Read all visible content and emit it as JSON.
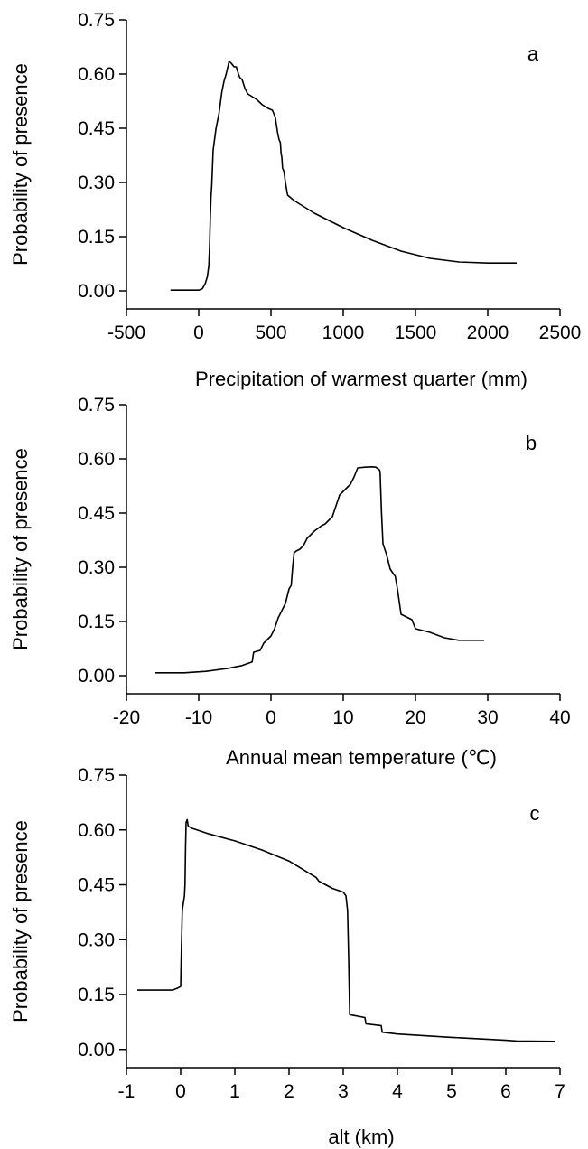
{
  "chart_data": [
    {
      "type": "line",
      "panel_label": "a",
      "xlabel": "Precipitation of warmest quarter (mm)",
      "ylabel": "Probability of presence",
      "xlim": [
        -500,
        2500
      ],
      "ylim": [
        -0.05,
        0.75
      ],
      "xticks": [
        "-500",
        "0",
        "500",
        "1000",
        "1500",
        "2000",
        "2500"
      ],
      "yticks": [
        "0.00",
        "0.15",
        "0.30",
        "0.45",
        "0.60",
        "0.75"
      ],
      "grid": false,
      "series": [
        {
          "x": [
            -195,
            0,
            25,
            45,
            60,
            70,
            75,
            80,
            85,
            90,
            100,
            110,
            120,
            140,
            160,
            175,
            190,
            210,
            225,
            235,
            245,
            260,
            275,
            285,
            300,
            320,
            340,
            360,
            380,
            400,
            440,
            480,
            510,
            530,
            545,
            555,
            560,
            565,
            570,
            575,
            580,
            590,
            600,
            615,
            630,
            660,
            700,
            800,
            1000,
            1200,
            1400,
            1600,
            1800,
            2000,
            2200
          ],
          "y": [
            0.002,
            0.002,
            0.006,
            0.02,
            0.04,
            0.07,
            0.12,
            0.2,
            0.26,
            0.29,
            0.39,
            0.42,
            0.45,
            0.49,
            0.55,
            0.58,
            0.6,
            0.635,
            0.63,
            0.625,
            0.62,
            0.62,
            0.6,
            0.59,
            0.585,
            0.56,
            0.545,
            0.54,
            0.535,
            0.53,
            0.515,
            0.505,
            0.5,
            0.48,
            0.44,
            0.42,
            0.415,
            0.41,
            0.38,
            0.37,
            0.34,
            0.33,
            0.3,
            0.265,
            0.26,
            0.25,
            0.24,
            0.215,
            0.175,
            0.14,
            0.11,
            0.09,
            0.08,
            0.077,
            0.077
          ]
        }
      ]
    },
    {
      "type": "line",
      "panel_label": "b",
      "xlabel": "Annual mean temperature (℃)",
      "ylabel": "Probability of presence",
      "xlim": [
        -20,
        40
      ],
      "ylim": [
        -0.05,
        0.75
      ],
      "xticks": [
        "-20",
        "-10",
        "0",
        "10",
        "20",
        "30",
        "40"
      ],
      "yticks": [
        "0.00",
        "0.15",
        "0.30",
        "0.45",
        "0.60",
        "0.75"
      ],
      "grid": false,
      "series": [
        {
          "x": [
            -16,
            -12,
            -9,
            -6,
            -4,
            -2.6,
            -2.4,
            -1.5,
            -1,
            -0.5,
            0,
            0.5,
            1,
            1.5,
            2,
            2.5,
            2.8,
            3.0,
            3.2,
            3.5,
            4,
            4.5,
            5,
            6,
            7,
            7.5,
            8,
            8.5,
            9,
            9.5,
            10,
            10.5,
            11,
            11.5,
            12,
            13,
            14,
            14.5,
            15,
            15.1,
            15.3,
            15.5,
            16,
            16.5,
            17,
            17.2,
            17.5,
            18,
            19,
            19.5,
            20,
            22,
            24,
            26,
            27.5,
            29.5
          ],
          "y": [
            0.008,
            0.008,
            0.012,
            0.02,
            0.028,
            0.038,
            0.065,
            0.07,
            0.09,
            0.1,
            0.11,
            0.13,
            0.16,
            0.18,
            0.2,
            0.24,
            0.25,
            0.3,
            0.34,
            0.345,
            0.35,
            0.36,
            0.38,
            0.4,
            0.415,
            0.42,
            0.43,
            0.44,
            0.47,
            0.5,
            0.51,
            0.52,
            0.53,
            0.55,
            0.575,
            0.577,
            0.578,
            0.577,
            0.57,
            0.565,
            0.45,
            0.365,
            0.335,
            0.295,
            0.28,
            0.275,
            0.24,
            0.17,
            0.16,
            0.155,
            0.13,
            0.12,
            0.105,
            0.098,
            0.098,
            0.098
          ]
        }
      ]
    },
    {
      "type": "line",
      "panel_label": "c",
      "xlabel": "alt (km)",
      "ylabel": "Probability of presence",
      "xlim": [
        -1,
        7
      ],
      "ylim": [
        -0.05,
        0.75
      ],
      "xticks": [
        "-1",
        "0",
        "1",
        "2",
        "3",
        "4",
        "5",
        "6",
        "7"
      ],
      "yticks": [
        "0.00",
        "0.15",
        "0.30",
        "0.45",
        "0.60",
        "0.75"
      ],
      "grid": false,
      "series": [
        {
          "x": [
            -0.8,
            -0.15,
            -0.05,
            0,
            0.01,
            0.03,
            0.05,
            0.07,
            0.08,
            0.09,
            0.1,
            0.12,
            0.14,
            0.2,
            0.5,
            1,
            1.5,
            2,
            2.5,
            2.55,
            2.8,
            3.0,
            3.05,
            3.08,
            3.1,
            3.12,
            3.4,
            3.42,
            3.7,
            3.72,
            4,
            5,
            6,
            6.2,
            6.9
          ],
          "y": [
            0.162,
            0.162,
            0.168,
            0.172,
            0.25,
            0.38,
            0.4,
            0.42,
            0.45,
            0.55,
            0.62,
            0.628,
            0.61,
            0.605,
            0.59,
            0.57,
            0.545,
            0.515,
            0.47,
            0.46,
            0.44,
            0.43,
            0.42,
            0.38,
            0.25,
            0.095,
            0.087,
            0.07,
            0.065,
            0.047,
            0.042,
            0.033,
            0.025,
            0.023,
            0.022
          ]
        }
      ]
    }
  ]
}
